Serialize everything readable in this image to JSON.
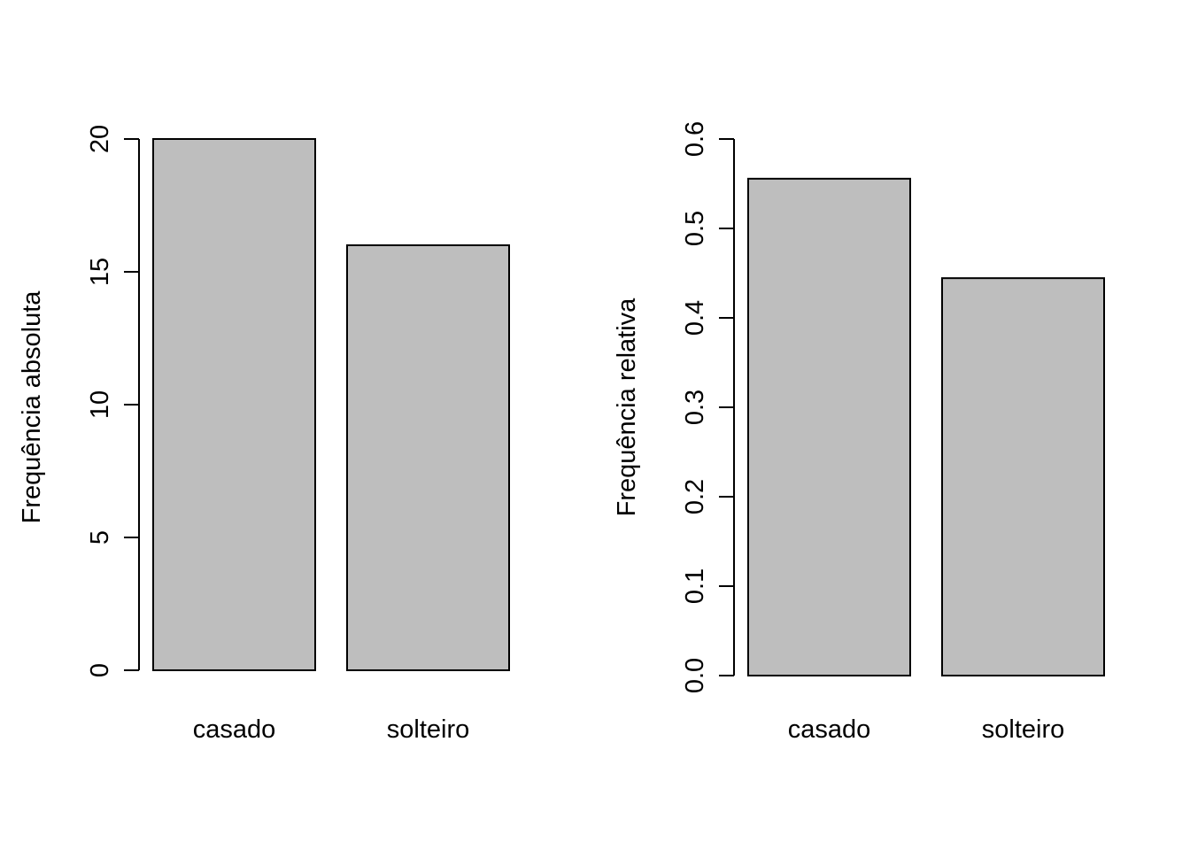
{
  "chart_data": [
    {
      "type": "bar",
      "categories": [
        "casado",
        "solteiro"
      ],
      "values": [
        20,
        16
      ],
      "ylabel": "Frequência absoluta",
      "xlabel": "",
      "ylim": [
        0,
        20
      ],
      "yticks": [
        0,
        5,
        10,
        15,
        20
      ],
      "ytick_labels": [
        "0",
        "5",
        "10",
        "15",
        "20"
      ],
      "bar_color": "#bebebe",
      "grid": false
    },
    {
      "type": "bar",
      "categories": [
        "casado",
        "solteiro"
      ],
      "values": [
        0.5556,
        0.4444
      ],
      "ylabel": "Frequência relativa",
      "xlabel": "",
      "ylim": [
        0,
        0.6
      ],
      "yticks": [
        0.0,
        0.1,
        0.2,
        0.3,
        0.4,
        0.5,
        0.6
      ],
      "ytick_labels": [
        "0.0",
        "0.1",
        "0.2",
        "0.3",
        "0.4",
        "0.5",
        "0.6"
      ],
      "bar_color": "#bebebe",
      "grid": false
    }
  ]
}
